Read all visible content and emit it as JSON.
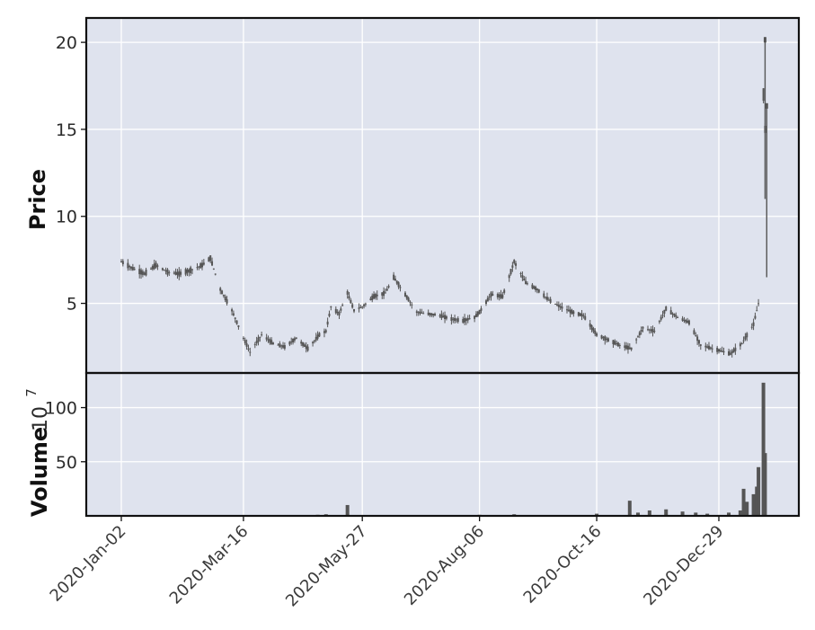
{
  "chart_data": [
    {
      "type": "candlestick",
      "panel": "price",
      "ylabel": "Price",
      "ylim": [
        1,
        21.4
      ],
      "yticks": [
        5,
        10,
        15,
        20
      ],
      "xticks": [
        "2020-Jan-02",
        "2020-Mar-16",
        "2020-May-27",
        "2020-Aug-06",
        "2020-Oct-16",
        "2020-Dec-29"
      ],
      "grid": true,
      "color": "#555555",
      "background": "#dfe3ee",
      "close_series": [
        {
          "x": "2020-Jan-02",
          "y": 7.4
        },
        {
          "x": "2020-Jan-09",
          "y": 7.0
        },
        {
          "x": "2020-Jan-16",
          "y": 6.7
        },
        {
          "x": "2020-Jan-23",
          "y": 7.2
        },
        {
          "x": "2020-Jan-30",
          "y": 6.8
        },
        {
          "x": "2020-Feb-06",
          "y": 6.7
        },
        {
          "x": "2020-Feb-13",
          "y": 6.9
        },
        {
          "x": "2020-Feb-20",
          "y": 7.2
        },
        {
          "x": "2020-Feb-25",
          "y": 7.6
        },
        {
          "x": "2020-Mar-02",
          "y": 5.8
        },
        {
          "x": "2020-Mar-09",
          "y": 4.6
        },
        {
          "x": "2020-Mar-16",
          "y": 3.0
        },
        {
          "x": "2020-Mar-20",
          "y": 2.2
        },
        {
          "x": "2020-Mar-27",
          "y": 3.2
        },
        {
          "x": "2020-Apr-03",
          "y": 2.7
        },
        {
          "x": "2020-Apr-10",
          "y": 2.5
        },
        {
          "x": "2020-Apr-17",
          "y": 3.0
        },
        {
          "x": "2020-Apr-24",
          "y": 2.4
        },
        {
          "x": "2020-May-01",
          "y": 3.2
        },
        {
          "x": "2020-May-05",
          "y": 3.4
        },
        {
          "x": "2020-May-08",
          "y": 4.8
        },
        {
          "x": "2020-May-13",
          "y": 4.4
        },
        {
          "x": "2020-May-18",
          "y": 5.6
        },
        {
          "x": "2020-May-22",
          "y": 4.6
        },
        {
          "x": "2020-May-27",
          "y": 4.8
        },
        {
          "x": "2020-Jun-03",
          "y": 5.4
        },
        {
          "x": "2020-Jun-10",
          "y": 5.6
        },
        {
          "x": "2020-Jun-15",
          "y": 6.5
        },
        {
          "x": "2020-Jun-22",
          "y": 5.5
        },
        {
          "x": "2020-Jun-29",
          "y": 4.5
        },
        {
          "x": "2020-Jul-06",
          "y": 4.4
        },
        {
          "x": "2020-Jul-13",
          "y": 4.3
        },
        {
          "x": "2020-Jul-20",
          "y": 4.1
        },
        {
          "x": "2020-Jul-27",
          "y": 4.0
        },
        {
          "x": "2020-Aug-03",
          "y": 4.2
        },
        {
          "x": "2020-Aug-06",
          "y": 4.5
        },
        {
          "x": "2020-Aug-13",
          "y": 5.5
        },
        {
          "x": "2020-Aug-20",
          "y": 5.4
        },
        {
          "x": "2020-Aug-27",
          "y": 7.4
        },
        {
          "x": "2020-Sep-03",
          "y": 6.2
        },
        {
          "x": "2020-Sep-10",
          "y": 5.8
        },
        {
          "x": "2020-Sep-17",
          "y": 5.2
        },
        {
          "x": "2020-Sep-24",
          "y": 4.8
        },
        {
          "x": "2020-Oct-01",
          "y": 4.5
        },
        {
          "x": "2020-Oct-08",
          "y": 4.3
        },
        {
          "x": "2020-Oct-16",
          "y": 3.2
        },
        {
          "x": "2020-Oct-23",
          "y": 2.9
        },
        {
          "x": "2020-Oct-30",
          "y": 2.6
        },
        {
          "x": "2020-Nov-06",
          "y": 2.4
        },
        {
          "x": "2020-Nov-13",
          "y": 3.6
        },
        {
          "x": "2020-Nov-20",
          "y": 3.4
        },
        {
          "x": "2020-Nov-27",
          "y": 4.7
        },
        {
          "x": "2020-Dec-04",
          "y": 4.2
        },
        {
          "x": "2020-Dec-11",
          "y": 3.9
        },
        {
          "x": "2020-Dec-18",
          "y": 2.6
        },
        {
          "x": "2020-Dec-29",
          "y": 2.3
        },
        {
          "x": "2021-Jan-05",
          "y": 2.1
        },
        {
          "x": "2021-Jan-12",
          "y": 2.7
        },
        {
          "x": "2021-Jan-19",
          "y": 3.8
        },
        {
          "x": "2021-Jan-22",
          "y": 5.0
        },
        {
          "x": "2021-Jan-25",
          "y": 17.0
        },
        {
          "x": "2021-Jan-27",
          "y": 13.0
        }
      ],
      "spikes": [
        {
          "x": "2021-Jan-26",
          "low": 11,
          "high": 20.3
        },
        {
          "x": "2021-Jan-27",
          "low": 6.5,
          "high": 16.5
        }
      ]
    },
    {
      "type": "bar",
      "panel": "volume",
      "ylabel": "Volume",
      "exponent": "7",
      "ylim": [
        0,
        132
      ],
      "yticks": [
        50,
        100
      ],
      "grid": true,
      "color": "#555555",
      "background": "#dfe3ee",
      "values": [
        {
          "x": "2020-Apr-30",
          "y": 1.0
        },
        {
          "x": "2020-May-05",
          "y": 1.5
        },
        {
          "x": "2020-May-18",
          "y": 10.0
        },
        {
          "x": "2020-Aug-06",
          "y": 1.0
        },
        {
          "x": "2020-Aug-27",
          "y": 1.5
        },
        {
          "x": "2020-Oct-16",
          "y": 2.0
        },
        {
          "x": "2020-Nov-05",
          "y": 14.0
        },
        {
          "x": "2020-Nov-10",
          "y": 3.0
        },
        {
          "x": "2020-Nov-17",
          "y": 5.0
        },
        {
          "x": "2020-Nov-27",
          "y": 6.0
        },
        {
          "x": "2020-Dec-07",
          "y": 4.0
        },
        {
          "x": "2020-Dec-15",
          "y": 3.0
        },
        {
          "x": "2020-Dec-22",
          "y": 2.0
        },
        {
          "x": "2021-Jan-04",
          "y": 3.0
        },
        {
          "x": "2021-Jan-11",
          "y": 5.0
        },
        {
          "x": "2021-Jan-13",
          "y": 25.0
        },
        {
          "x": "2021-Jan-15",
          "y": 13.0
        },
        {
          "x": "2021-Jan-19",
          "y": 20.0
        },
        {
          "x": "2021-Jan-21",
          "y": 27.0
        },
        {
          "x": "2021-Jan-22",
          "y": 45.0
        },
        {
          "x": "2021-Jan-25",
          "y": 123.0
        },
        {
          "x": "2021-Jan-26",
          "y": 58.0
        }
      ]
    }
  ]
}
